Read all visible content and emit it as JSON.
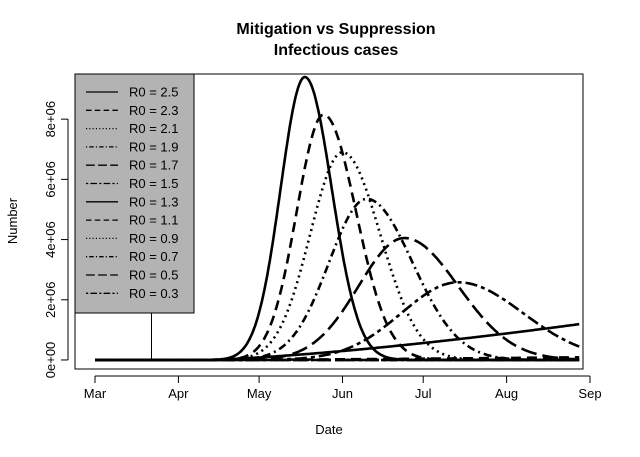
{
  "chart_data": {
    "type": "line",
    "title": "Mitigation vs Suppression",
    "subtitle": "Infectious cases",
    "xlabel": "Date",
    "ylabel": "Number",
    "xlim": [
      0,
      183
    ],
    "ylim": [
      -300000,
      9500000
    ],
    "x_ticks": [
      {
        "value": 0,
        "label": "Mar"
      },
      {
        "value": 31,
        "label": "Apr"
      },
      {
        "value": 61,
        "label": "May"
      },
      {
        "value": 92,
        "label": "Jun"
      },
      {
        "value": 122,
        "label": "Jul"
      },
      {
        "value": 153,
        "label": "Aug"
      },
      {
        "value": 184,
        "label": "Sep"
      }
    ],
    "y_ticks": [
      {
        "value": 0,
        "label": "0e+00"
      },
      {
        "value": 2000000,
        "label": "2e+06"
      },
      {
        "value": 4000000,
        "label": "4e+06"
      },
      {
        "value": 6000000,
        "label": "6e+06"
      },
      {
        "value": 8000000,
        "label": "8e+06"
      }
    ],
    "vertical_marker_day": 21,
    "legend_position": "top-left",
    "legend_bg": "#b3b3b3",
    "x_end_day": 180,
    "series": [
      {
        "name": "R0 = 2.5",
        "dash": "solid",
        "weight": "bold",
        "peak_day": 78,
        "peak_value": 9400000,
        "rise_width": 9,
        "fall_width": 10,
        "end_value": 0
      },
      {
        "name": "R0 = 2.3",
        "dash": "dashed",
        "weight": "bold",
        "peak_day": 85,
        "peak_value": 8150000,
        "rise_width": 10,
        "fall_width": 12,
        "end_value": 0
      },
      {
        "name": "R0 = 2.1",
        "dash": "dotted",
        "weight": "bold",
        "peak_day": 92,
        "peak_value": 6900000,
        "rise_width": 12,
        "fall_width": 14,
        "end_value": 0
      },
      {
        "name": "R0 = 1.9",
        "dash": "dotdash",
        "weight": "bold",
        "peak_day": 101,
        "peak_value": 5350000,
        "rise_width": 14,
        "fall_width": 17,
        "end_value": 0
      },
      {
        "name": "R0 = 1.7",
        "dash": "longdash",
        "weight": "bold",
        "peak_day": 115,
        "peak_value": 4050000,
        "rise_width": 17,
        "fall_width": 20,
        "end_value": 100000
      },
      {
        "name": "R0 = 1.5",
        "dash": "twodash",
        "weight": "bold",
        "peak_day": 135,
        "peak_value": 2580000,
        "rise_width": 21,
        "fall_width": 24,
        "end_value": 700000
      },
      {
        "name": "R0 = 1.3",
        "dash": "solid",
        "weight": "bold",
        "ramp_start": 40,
        "ramp_values": [
          0,
          1190000
        ],
        "end_value": 1190000
      },
      {
        "name": "R0 = 1.1",
        "dash": "dashed",
        "weight": "bold",
        "ramp_start": 40,
        "ramp_values": [
          0,
          90000
        ],
        "end_value": 90000
      },
      {
        "name": "R0 = 0.9",
        "dash": "dotted",
        "weight": "bold",
        "ramp_start": 40,
        "ramp_values": [
          0,
          0
        ],
        "end_value": 0
      },
      {
        "name": "R0 = 0.7",
        "dash": "dotdash",
        "weight": "bold",
        "ramp_start": 40,
        "ramp_values": [
          0,
          0
        ],
        "end_value": 0
      },
      {
        "name": "R0 = 0.5",
        "dash": "longdash",
        "weight": "bold",
        "ramp_start": 40,
        "ramp_values": [
          0,
          0
        ],
        "end_value": 0
      },
      {
        "name": "R0 = 0.3",
        "dash": "twodash",
        "weight": "bold",
        "ramp_start": 40,
        "ramp_values": [
          0,
          0
        ],
        "end_value": 0
      }
    ]
  }
}
